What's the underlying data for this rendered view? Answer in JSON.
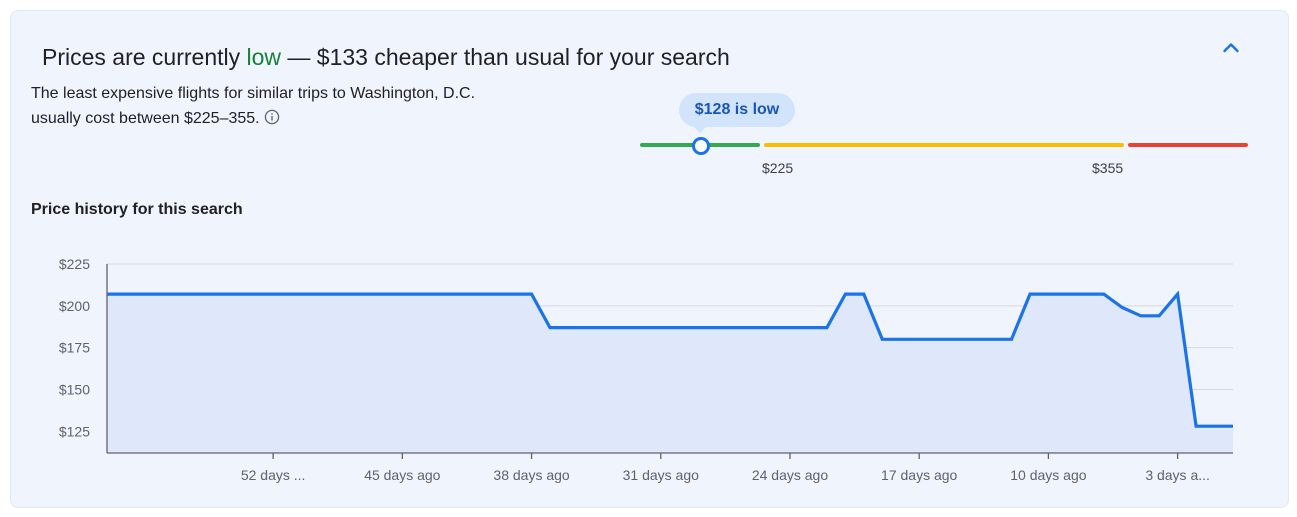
{
  "header": {
    "prefix": "Prices are currently ",
    "status_word": "low",
    "suffix": " — $133 cheaper than usual for your search",
    "collapse_icon": "chevron-up-icon"
  },
  "summary": {
    "text": "The least expensive flights for similar trips to Washington, D.C. usually cost between $225–355.",
    "info_icon": "info-icon"
  },
  "price_range": {
    "current_label": "$128 is low",
    "current_value": 128,
    "typical_low_label": "$225",
    "typical_high_label": "$355",
    "colors": {
      "low": "#34a853",
      "typical": "#fbbc04",
      "high": "#ea4335",
      "marker": "#1a73e8"
    }
  },
  "history": {
    "title": "Price history for this search"
  },
  "chart_data": {
    "type": "area",
    "title": "Price history for this search",
    "xlabel": "",
    "ylabel": "",
    "ylim": [
      112,
      225
    ],
    "xlim": [
      -61,
      0
    ],
    "y_ticks": [
      {
        "value": 225,
        "label": "$225"
      },
      {
        "value": 200,
        "label": "$200"
      },
      {
        "value": 175,
        "label": "$175"
      },
      {
        "value": 150,
        "label": "$150"
      },
      {
        "value": 125,
        "label": "$125"
      }
    ],
    "x_ticks": [
      {
        "value": -52,
        "label": "52 days ..."
      },
      {
        "value": -45,
        "label": "45 days ago"
      },
      {
        "value": -38,
        "label": "38 days ago"
      },
      {
        "value": -31,
        "label": "31 days ago"
      },
      {
        "value": -24,
        "label": "24 days ago"
      },
      {
        "value": -17,
        "label": "17 days ago"
      },
      {
        "value": -10,
        "label": "10 days ago"
      },
      {
        "value": -3,
        "label": "3 days a..."
      }
    ],
    "grid": true,
    "color": "#1a73e8",
    "fill": "#dfe8fa",
    "series": [
      {
        "x": [
          -61,
          -45,
          -38,
          -37,
          -31,
          -24,
          -22,
          -21,
          -20,
          -19,
          -17,
          -12,
          -11,
          -10,
          -7,
          -6,
          -5,
          -4,
          -3,
          -2,
          -1,
          0
        ],
        "values": [
          207,
          207,
          207,
          187,
          187,
          187,
          187,
          207,
          207,
          180,
          180,
          180,
          207,
          207,
          207,
          199,
          194,
          194,
          207,
          128,
          128,
          128
        ]
      }
    ]
  }
}
